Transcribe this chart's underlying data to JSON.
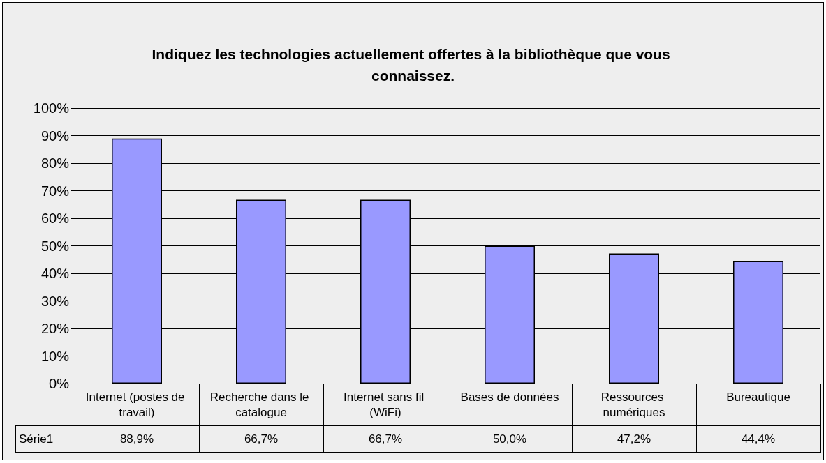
{
  "chart_data": {
    "type": "bar",
    "title": "Indiquez les technologies actuellement offertes à la bibliothèque que vous connaissez.",
    "categories": [
      "Internet (postes de travail)",
      "Recherche dans le catalogue",
      "Internet sans fil (WiFi)",
      "Bases de données",
      "Ressources numériques",
      "Bureautique"
    ],
    "series": [
      {
        "name": "Série1",
        "color": "#9999ff",
        "values": [
          88.9,
          66.7,
          66.7,
          50.0,
          47.2,
          44.4
        ],
        "value_labels": [
          "88,9%",
          "66,7%",
          "66,7%",
          "50,0%",
          "47,2%",
          "44,4%"
        ]
      }
    ],
    "ylim": [
      0,
      100
    ],
    "yticks": [
      {
        "value": 0,
        "label": "0%"
      },
      {
        "value": 10,
        "label": "10%"
      },
      {
        "value": 20,
        "label": "20%"
      },
      {
        "value": 30,
        "label": "30%"
      },
      {
        "value": 40,
        "label": "40%"
      },
      {
        "value": 50,
        "label": "50%"
      },
      {
        "value": 60,
        "label": "60%"
      },
      {
        "value": 70,
        "label": "70%"
      },
      {
        "value": 80,
        "label": "80%"
      },
      {
        "value": 90,
        "label": "90%"
      },
      {
        "value": 100,
        "label": "100%"
      }
    ],
    "grid": "y",
    "legend": false
  }
}
